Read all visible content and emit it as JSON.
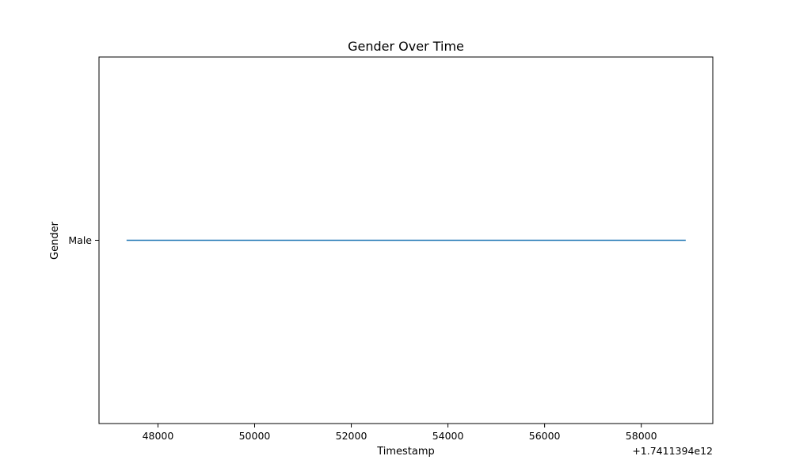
{
  "chart_data": {
    "type": "line",
    "title": "Gender Over Time",
    "xlabel": "Timestamp",
    "ylabel": "Gender",
    "x_offset_label": "+1.7411394e12",
    "x_ticks": [
      48000,
      50000,
      52000,
      54000,
      56000,
      58000
    ],
    "y_categories": [
      "Male"
    ],
    "xlim": [
      46780,
      59480
    ],
    "series": [
      {
        "color": "#1f77b4",
        "points": [
          {
            "x": 47350,
            "y": "Male"
          },
          {
            "x": 58920,
            "y": "Male"
          }
        ]
      }
    ],
    "grid": false
  }
}
